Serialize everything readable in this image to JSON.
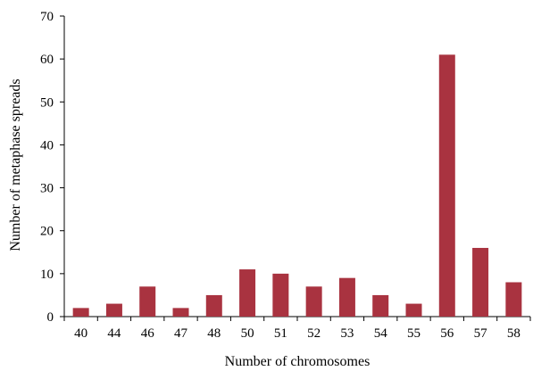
{
  "chart_data": {
    "type": "bar",
    "title": "",
    "xlabel": "Number of chromosomes",
    "ylabel": "Number of metaphase spreads",
    "categories": [
      "40",
      "44",
      "46",
      "47",
      "48",
      "50",
      "51",
      "52",
      "53",
      "54",
      "55",
      "56",
      "57",
      "58"
    ],
    "values": [
      2,
      3,
      7,
      2,
      5,
      11,
      10,
      7,
      9,
      5,
      3,
      61,
      16,
      8
    ],
    "ylim": [
      0,
      70
    ],
    "yticks": [
      0,
      10,
      20,
      30,
      40,
      50,
      60,
      70
    ],
    "grid": false,
    "legend": "none",
    "bar_color": "#a93340"
  }
}
